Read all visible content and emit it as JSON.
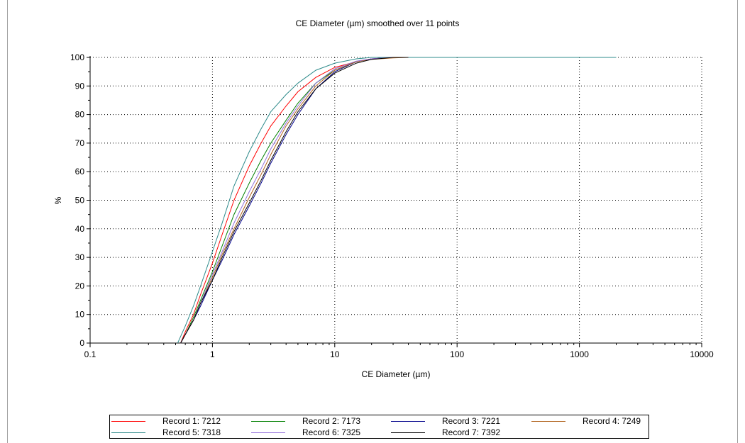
{
  "chart_data": {
    "type": "line",
    "title": "CE Diameter (µm) smoothed over 11 points",
    "xlabel": "CE Diameter (µm)",
    "ylabel": "%",
    "x_scale": "log",
    "xlim": [
      0.1,
      10000
    ],
    "ylim": [
      0,
      100
    ],
    "x_ticks": [
      "0.1",
      "1",
      "10",
      "100",
      "1000",
      "10000"
    ],
    "y_ticks": [
      "0",
      "10",
      "20",
      "30",
      "40",
      "50",
      "60",
      "70",
      "80",
      "90",
      "100"
    ],
    "grid": true,
    "legend_position": "bottom",
    "series": [
      {
        "name": "Record 1: 7212",
        "color": "#ff0000",
        "points": [
          [
            0.55,
            0
          ],
          [
            0.6,
            4
          ],
          [
            0.7,
            10
          ],
          [
            0.8,
            17
          ],
          [
            1,
            28
          ],
          [
            1.2,
            38
          ],
          [
            1.5,
            50
          ],
          [
            2,
            62
          ],
          [
            2.5,
            70
          ],
          [
            3,
            76
          ],
          [
            4,
            83
          ],
          [
            5,
            88
          ],
          [
            7,
            93
          ],
          [
            10,
            96.5
          ],
          [
            15,
            98.5
          ],
          [
            20,
            99.5
          ],
          [
            30,
            100
          ],
          [
            40,
            100
          ]
        ]
      },
      {
        "name": "Record 2: 7173",
        "color": "#008000",
        "points": [
          [
            0.55,
            0
          ],
          [
            0.6,
            3
          ],
          [
            0.7,
            9
          ],
          [
            0.8,
            15
          ],
          [
            1,
            25
          ],
          [
            1.2,
            34
          ],
          [
            1.5,
            45
          ],
          [
            2,
            56
          ],
          [
            2.5,
            64
          ],
          [
            3,
            70
          ],
          [
            4,
            78
          ],
          [
            5,
            84
          ],
          [
            7,
            91
          ],
          [
            10,
            95.5
          ],
          [
            15,
            98.5
          ],
          [
            20,
            99.5
          ],
          [
            30,
            100
          ],
          [
            40,
            100
          ]
        ]
      },
      {
        "name": "Record 3: 7221",
        "color": "#00008b",
        "points": [
          [
            0.55,
            0
          ],
          [
            0.6,
            3
          ],
          [
            0.7,
            8
          ],
          [
            0.8,
            13
          ],
          [
            1,
            22
          ],
          [
            1.2,
            29
          ],
          [
            1.5,
            38
          ],
          [
            2,
            48
          ],
          [
            2.5,
            56
          ],
          [
            3,
            63
          ],
          [
            4,
            73
          ],
          [
            5,
            80
          ],
          [
            7,
            89
          ],
          [
            10,
            95
          ],
          [
            15,
            98.5
          ],
          [
            20,
            99.5
          ],
          [
            30,
            100
          ],
          [
            40,
            100
          ]
        ]
      },
      {
        "name": "Record 4: 7249",
        "color": "#b0601a",
        "points": [
          [
            0.55,
            0
          ],
          [
            0.6,
            3
          ],
          [
            0.7,
            8
          ],
          [
            0.8,
            14
          ],
          [
            1,
            23
          ],
          [
            1.2,
            31
          ],
          [
            1.5,
            40
          ],
          [
            2,
            51
          ],
          [
            2.5,
            59
          ],
          [
            3,
            66
          ],
          [
            4,
            76
          ],
          [
            5,
            82
          ],
          [
            7,
            90
          ],
          [
            10,
            95.5
          ],
          [
            15,
            98.5
          ],
          [
            20,
            99.3
          ],
          [
            30,
            99.8
          ],
          [
            40,
            100
          ]
        ]
      },
      {
        "name": "Record 5: 7318",
        "color": "#2e8b8b",
        "points": [
          [
            0.52,
            0
          ],
          [
            0.6,
            6
          ],
          [
            0.7,
            13
          ],
          [
            0.8,
            20
          ],
          [
            1,
            32
          ],
          [
            1.2,
            42
          ],
          [
            1.5,
            55
          ],
          [
            2,
            67
          ],
          [
            2.5,
            75
          ],
          [
            3,
            81
          ],
          [
            4,
            87
          ],
          [
            5,
            91
          ],
          [
            7,
            95.5
          ],
          [
            10,
            98
          ],
          [
            15,
            99.5
          ],
          [
            20,
            100
          ],
          [
            30,
            100
          ],
          [
            40,
            100
          ],
          [
            100,
            100
          ],
          [
            1000,
            100
          ],
          [
            2000,
            100
          ]
        ]
      },
      {
        "name": "Record 6: 7325",
        "color": "#9370db",
        "points": [
          [
            0.55,
            0
          ],
          [
            0.6,
            3
          ],
          [
            0.7,
            8
          ],
          [
            0.8,
            14
          ],
          [
            1,
            24
          ],
          [
            1.2,
            32
          ],
          [
            1.5,
            42
          ],
          [
            2,
            53
          ],
          [
            2.5,
            61
          ],
          [
            3,
            68
          ],
          [
            4,
            77
          ],
          [
            5,
            83
          ],
          [
            7,
            91
          ],
          [
            10,
            96
          ],
          [
            15,
            98.7
          ],
          [
            20,
            99.5
          ],
          [
            30,
            100
          ],
          [
            40,
            100
          ]
        ]
      },
      {
        "name": "Record 7: 7392",
        "color": "#000000",
        "points": [
          [
            0.55,
            0
          ],
          [
            0.6,
            3
          ],
          [
            0.7,
            8
          ],
          [
            0.8,
            14
          ],
          [
            1,
            22
          ],
          [
            1.2,
            30
          ],
          [
            1.5,
            39
          ],
          [
            2,
            49
          ],
          [
            2.5,
            57
          ],
          [
            3,
            64
          ],
          [
            4,
            74
          ],
          [
            5,
            81
          ],
          [
            7,
            89
          ],
          [
            10,
            94.5
          ],
          [
            15,
            98
          ],
          [
            20,
            99.3
          ],
          [
            30,
            100
          ],
          [
            40,
            100
          ]
        ]
      }
    ]
  }
}
